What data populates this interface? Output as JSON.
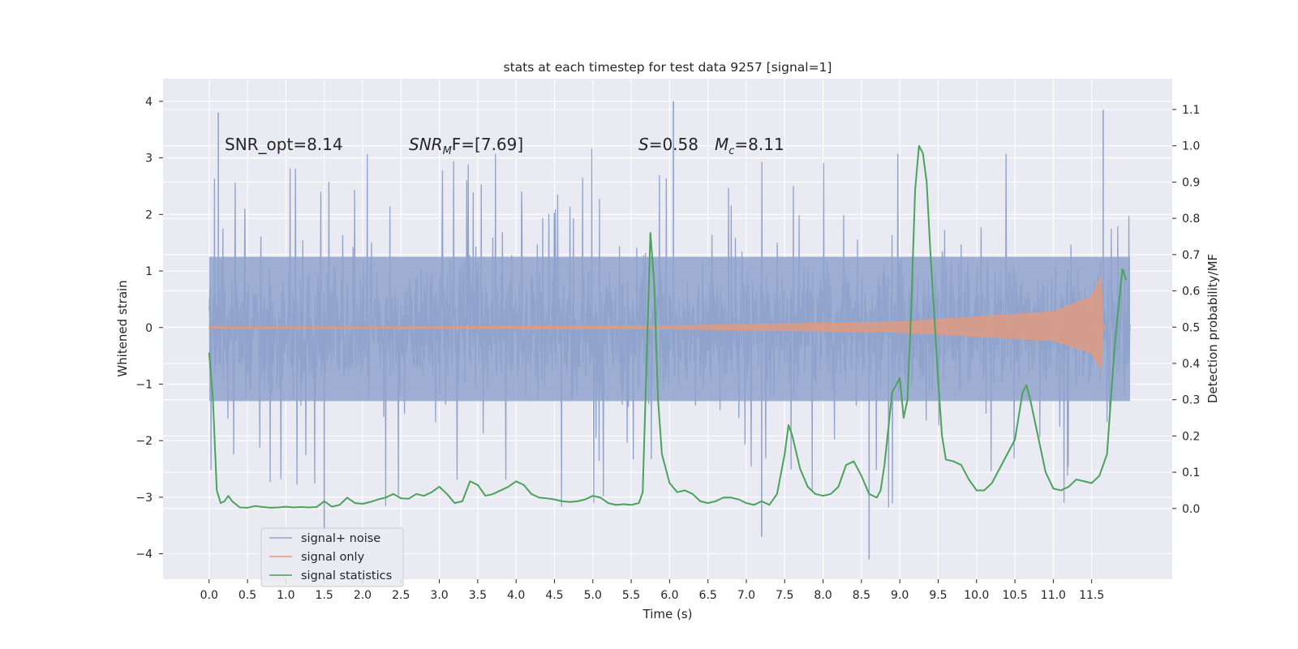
{
  "chart_data": {
    "type": "line",
    "title": "stats at each timestep for test data 9257 [signal=1]",
    "xlabel": "Time (s)",
    "ylabel_left": "Whitened strain",
    "ylabel_right": "Detection probability/MF",
    "xlim": [
      -0.6,
      12.55
    ],
    "ylim_left": [
      -4.45,
      4.4
    ],
    "ylim_right": [
      -0.195,
      1.185
    ],
    "x_ticks": [
      0.0,
      0.5,
      1.0,
      1.5,
      2.0,
      2.5,
      3.0,
      3.5,
      4.0,
      4.5,
      5.0,
      5.5,
      6.0,
      6.5,
      7.0,
      7.5,
      8.0,
      8.5,
      9.0,
      9.5,
      10.0,
      10.5,
      11.0,
      11.5
    ],
    "x_tick_labels": [
      "0.0",
      "0.5",
      "1.0",
      "1.5",
      "2.0",
      "2.5",
      "3.0",
      "3.5",
      "4.0",
      "4.5",
      "5.0",
      "5.5",
      "6.0",
      "6.5",
      "7.0",
      "7.5",
      "8.0",
      "8.5",
      "9.0",
      "9.5",
      "10.0",
      "10.5",
      "11.0",
      "11.5"
    ],
    "y_ticks_left": [
      4,
      3,
      2,
      1,
      0,
      -1,
      -2,
      -3,
      -4
    ],
    "y_tick_labels_left": [
      "4",
      "3",
      "2",
      "1",
      "0",
      "−1",
      "−2",
      "−3",
      "−4"
    ],
    "y_ticks_right": [
      1.1,
      1.0,
      0.9,
      0.8,
      0.7,
      0.6,
      0.5,
      0.4,
      0.3,
      0.2,
      0.1,
      0.0
    ],
    "y_tick_labels_right": [
      "1.1",
      "1.0",
      "0.9",
      "0.8",
      "0.7",
      "0.6",
      "0.5",
      "0.4",
      "0.3",
      "0.2",
      "0.1",
      "0.0"
    ],
    "grid": true,
    "legend_position": "lower-left",
    "annotations": {
      "snr_opt": "SNR_opt=8.14",
      "snr_mf_base": "SNR",
      "snr_mf_sub": "M",
      "snr_mf_rest": "F=[7.69]",
      "s_var": "S",
      "s_rest": "=0.58",
      "mc_var": "M",
      "mc_sub": "c",
      "mc_rest": "=8.11"
    },
    "series": [
      {
        "name": "signal+ noise",
        "color": "#8fa3cc",
        "axis": "left",
        "t_range": [
          0.0,
          12.0
        ],
        "typical_range": [
          -1.3,
          1.25
        ],
        "max_abs_peak": 4.1,
        "note_points": [
          [
            0.12,
            3.8
          ],
          [
            6.05,
            4.0
          ],
          [
            11.65,
            3.85
          ],
          [
            8.6,
            -4.1
          ],
          [
            7.2,
            -3.7
          ],
          [
            1.5,
            -3.6
          ]
        ]
      },
      {
        "name": "signal only",
        "color": "#dd9b83",
        "axis": "left",
        "t_range": [
          0.0,
          11.68
        ],
        "peak_envelope": 1.0,
        "note_points": [
          [
            0.0,
            0.0
          ],
          [
            6.0,
            0.03
          ],
          [
            9.0,
            0.1
          ],
          [
            11.0,
            0.28
          ],
          [
            11.5,
            0.55
          ],
          [
            11.65,
            1.0
          ]
        ]
      },
      {
        "name": "signal statistics",
        "color": "#4aa35c",
        "axis": "right",
        "x": [
          0.0,
          0.05,
          0.1,
          0.15,
          0.2,
          0.25,
          0.3,
          0.4,
          0.5,
          0.6,
          0.7,
          0.8,
          0.9,
          1.0,
          1.1,
          1.2,
          1.3,
          1.4,
          1.5,
          1.6,
          1.7,
          1.8,
          1.9,
          2.0,
          2.1,
          2.2,
          2.3,
          2.4,
          2.5,
          2.6,
          2.7,
          2.8,
          2.9,
          3.0,
          3.1,
          3.2,
          3.3,
          3.4,
          3.5,
          3.6,
          3.7,
          3.8,
          3.9,
          4.0,
          4.1,
          4.2,
          4.3,
          4.4,
          4.5,
          4.6,
          4.7,
          4.8,
          4.9,
          5.0,
          5.1,
          5.2,
          5.3,
          5.4,
          5.5,
          5.6,
          5.65,
          5.7,
          5.75,
          5.8,
          5.85,
          5.9,
          6.0,
          6.1,
          6.2,
          6.3,
          6.4,
          6.5,
          6.6,
          6.7,
          6.8,
          6.9,
          7.0,
          7.1,
          7.2,
          7.3,
          7.4,
          7.5,
          7.55,
          7.6,
          7.7,
          7.8,
          7.9,
          8.0,
          8.1,
          8.2,
          8.3,
          8.4,
          8.5,
          8.6,
          8.7,
          8.75,
          8.8,
          8.9,
          9.0,
          9.05,
          9.1,
          9.15,
          9.2,
          9.25,
          9.3,
          9.35,
          9.4,
          9.45,
          9.5,
          9.55,
          9.6,
          9.7,
          9.8,
          9.9,
          10.0,
          10.1,
          10.2,
          10.3,
          10.4,
          10.5,
          10.6,
          10.65,
          10.7,
          10.8,
          10.9,
          11.0,
          11.1,
          11.2,
          11.3,
          11.4,
          11.5,
          11.6,
          11.7,
          11.8,
          11.9,
          11.95
        ],
        "values": [
          0.43,
          0.3,
          0.05,
          0.015,
          0.02,
          0.035,
          0.02,
          0.003,
          0.002,
          0.007,
          0.004,
          0.002,
          0.003,
          0.005,
          0.003,
          0.004,
          0.003,
          0.004,
          0.02,
          0.005,
          0.01,
          0.03,
          0.015,
          0.013,
          0.018,
          0.025,
          0.03,
          0.04,
          0.028,
          0.027,
          0.04,
          0.035,
          0.045,
          0.06,
          0.04,
          0.015,
          0.02,
          0.075,
          0.065,
          0.035,
          0.04,
          0.05,
          0.06,
          0.075,
          0.065,
          0.04,
          0.03,
          0.028,
          0.025,
          0.02,
          0.018,
          0.02,
          0.025,
          0.035,
          0.03,
          0.015,
          0.01,
          0.012,
          0.01,
          0.015,
          0.045,
          0.4,
          0.76,
          0.62,
          0.3,
          0.15,
          0.07,
          0.045,
          0.05,
          0.04,
          0.02,
          0.015,
          0.02,
          0.03,
          0.03,
          0.025,
          0.015,
          0.01,
          0.02,
          0.01,
          0.04,
          0.15,
          0.23,
          0.2,
          0.11,
          0.06,
          0.04,
          0.035,
          0.04,
          0.06,
          0.12,
          0.13,
          0.09,
          0.04,
          0.03,
          0.05,
          0.12,
          0.32,
          0.36,
          0.25,
          0.3,
          0.56,
          0.88,
          1.0,
          0.98,
          0.9,
          0.7,
          0.53,
          0.35,
          0.2,
          0.135,
          0.13,
          0.12,
          0.08,
          0.05,
          0.05,
          0.07,
          0.11,
          0.15,
          0.19,
          0.32,
          0.34,
          0.3,
          0.2,
          0.1,
          0.055,
          0.05,
          0.06,
          0.08,
          0.075,
          0.07,
          0.09,
          0.15,
          0.45,
          0.66,
          0.63
        ]
      }
    ]
  }
}
